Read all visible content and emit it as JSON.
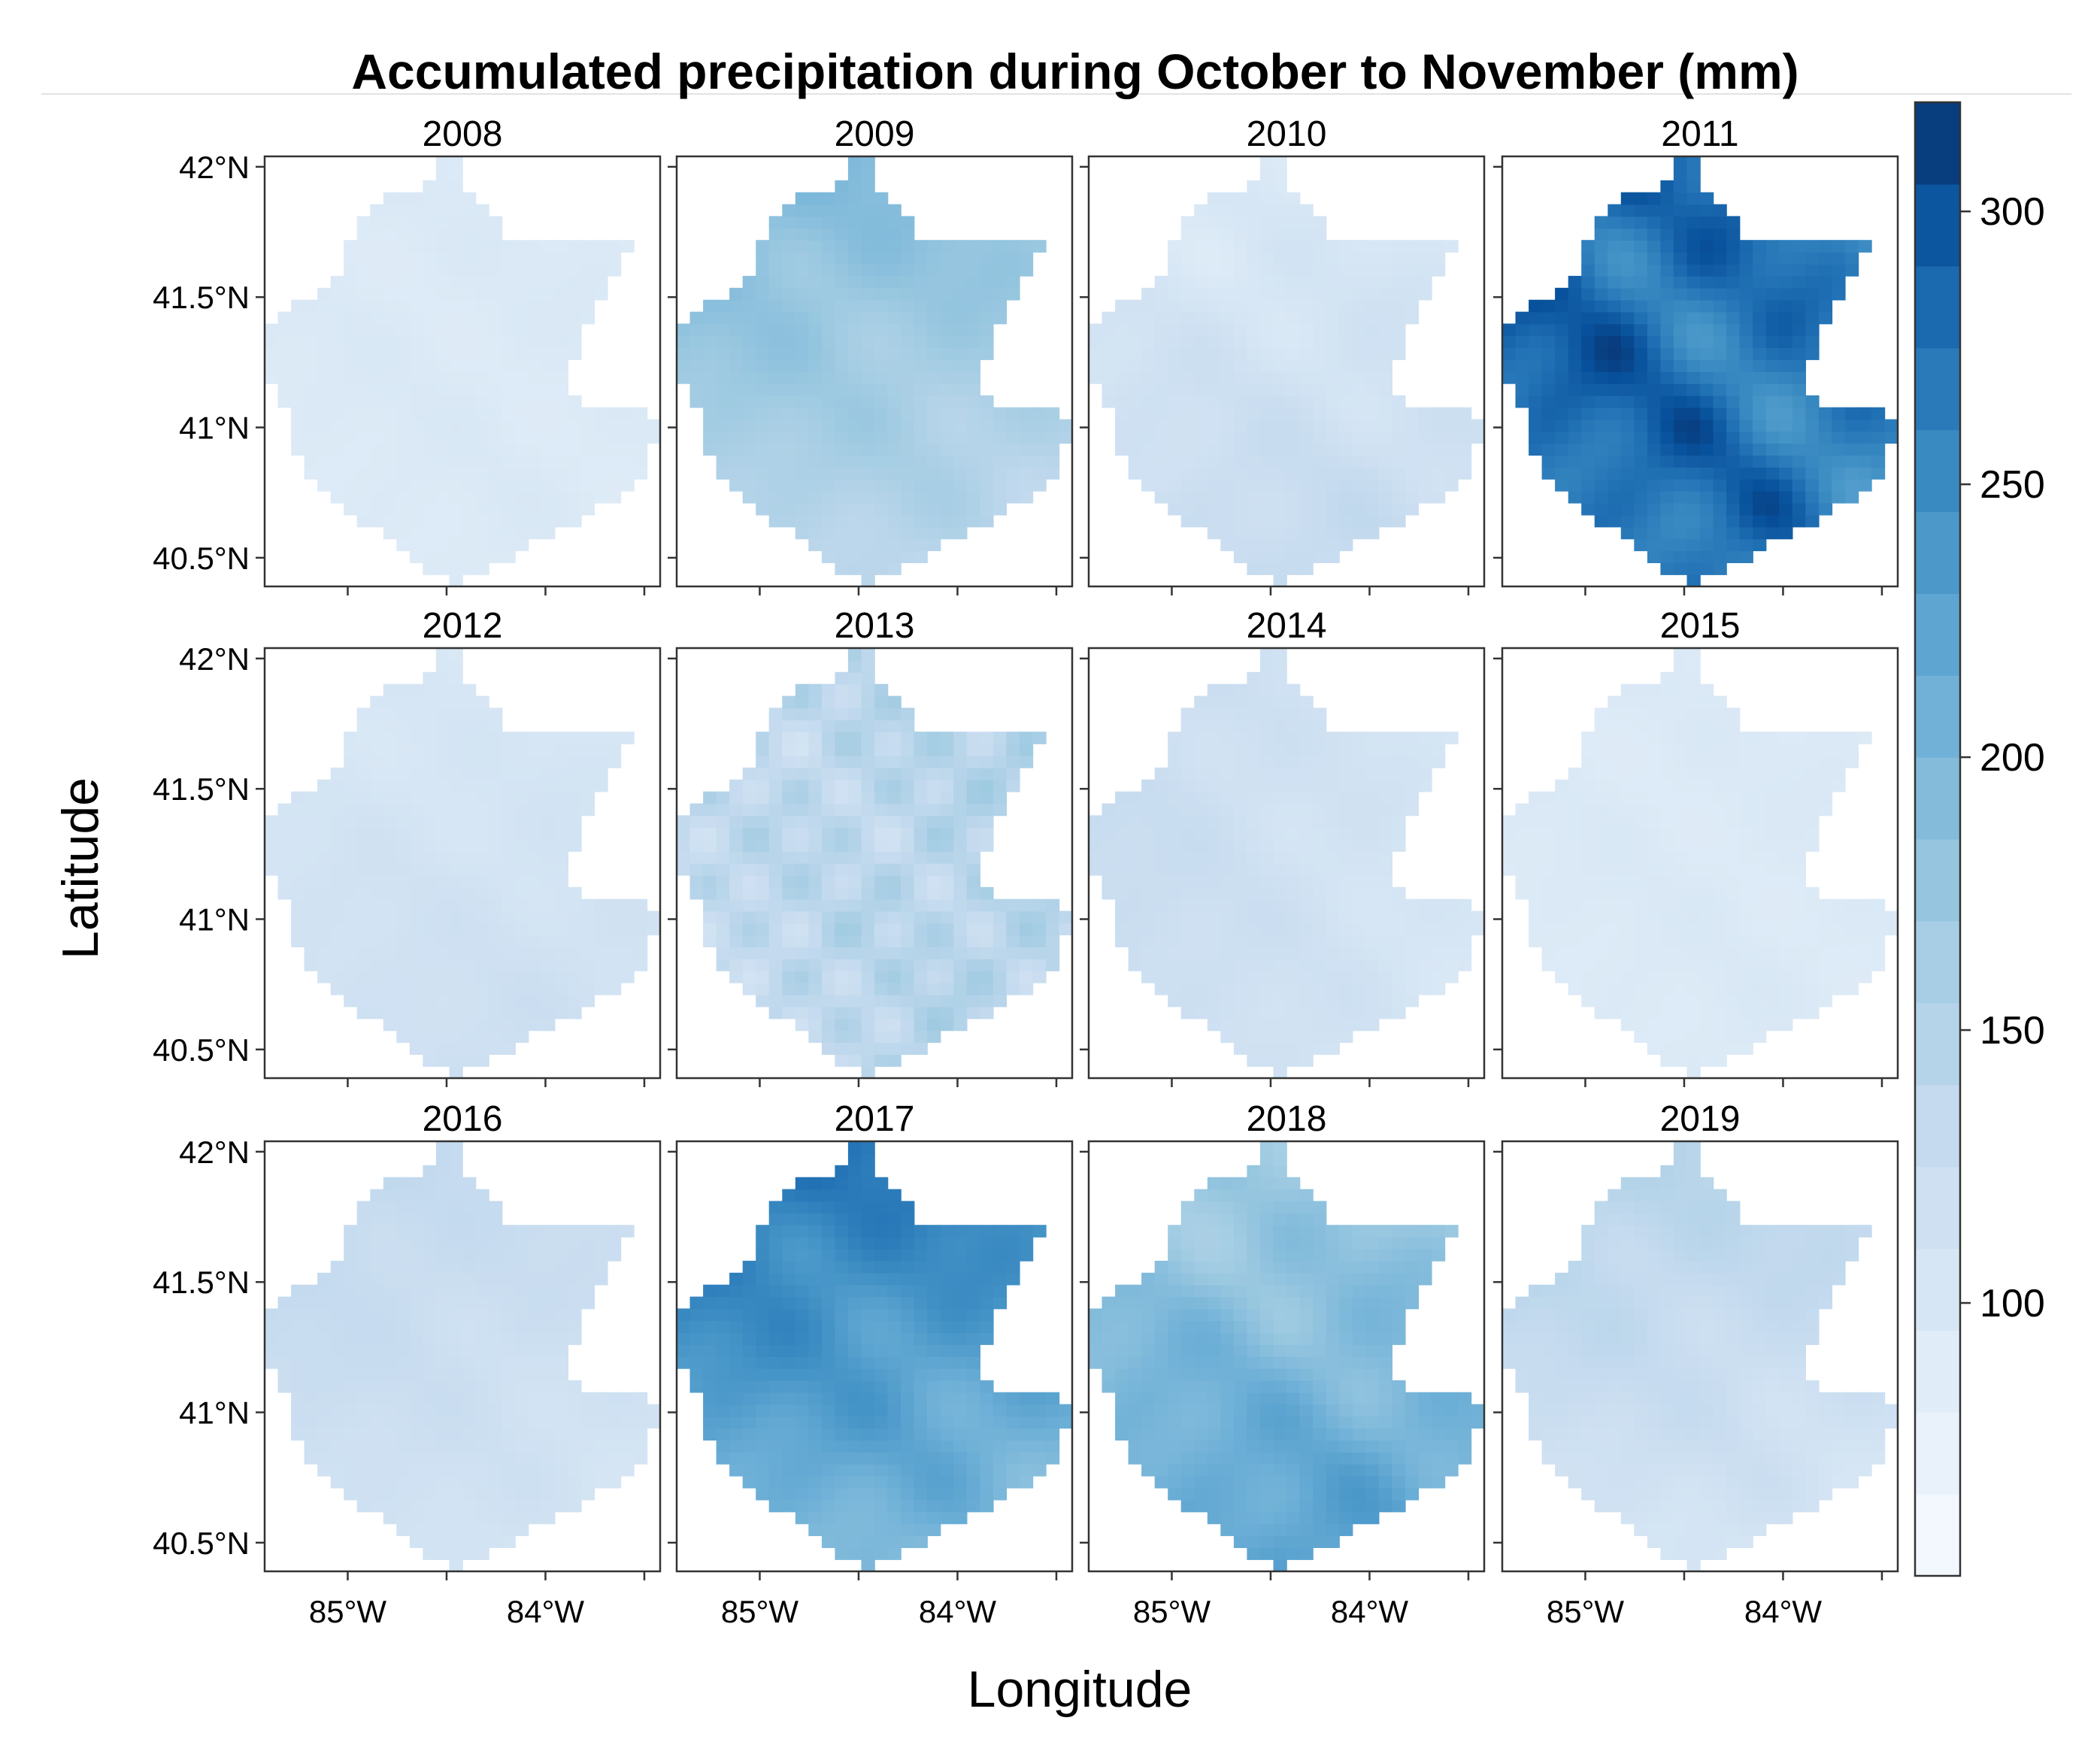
{
  "chart_data": {
    "type": "heatmap",
    "title": "Accumulated precipitation during October to November (mm)",
    "xlabel": "Longitude",
    "ylabel": "Latitude",
    "x_ticks": [
      {
        "value": -85,
        "label": "85°W"
      },
      {
        "value": -84,
        "label": "84°W"
      }
    ],
    "y_ticks": [
      {
        "value": 42,
        "label": "42°N"
      },
      {
        "value": 41.5,
        "label": "41.5°N"
      },
      {
        "value": 41,
        "label": "41°N"
      },
      {
        "value": 40.5,
        "label": "40.5°N"
      }
    ],
    "xlim": [
      -85.42,
      -83.42
    ],
    "ylim": [
      40.39,
      42.04
    ],
    "colorbar": {
      "range": [
        50,
        320
      ],
      "ticks": [
        100,
        150,
        200,
        250,
        300
      ],
      "low_color": "#f7fbff",
      "high_color": "#08306b"
    },
    "panels": [
      {
        "year": "2008",
        "mean": 95,
        "pattern": "uniform"
      },
      {
        "year": "2009",
        "mean": 165,
        "pattern": "north-high"
      },
      {
        "year": "2010",
        "mean": 115,
        "pattern": "south-high"
      },
      {
        "year": "2011",
        "mean": 275,
        "pattern": "very-high"
      },
      {
        "year": "2012",
        "mean": 110,
        "pattern": "south-mild"
      },
      {
        "year": "2013",
        "mean": 140,
        "pattern": "patchy"
      },
      {
        "year": "2014",
        "mean": 115,
        "pattern": "west-high"
      },
      {
        "year": "2015",
        "mean": 95,
        "pattern": "uniform"
      },
      {
        "year": "2016",
        "mean": 120,
        "pattern": "north-mild"
      },
      {
        "year": "2017",
        "mean": 230,
        "pattern": "north-high"
      },
      {
        "year": "2018",
        "mean": 200,
        "pattern": "south-high"
      },
      {
        "year": "2019",
        "mean": 125,
        "pattern": "north-high"
      }
    ]
  }
}
